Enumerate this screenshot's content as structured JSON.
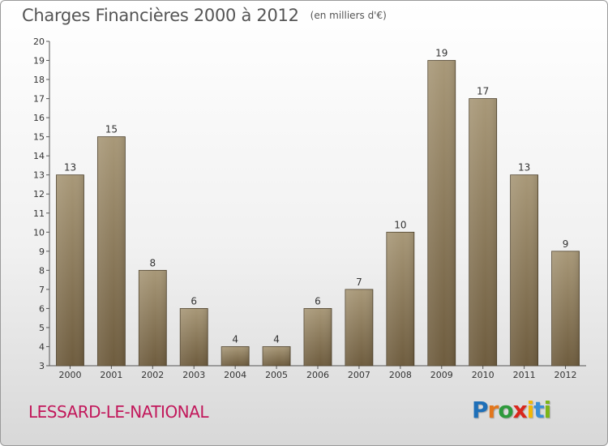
{
  "header": {
    "title": "Charges Financières 2000 à 2012",
    "subtitle": "(en milliers d'€)"
  },
  "footer": {
    "commune": "LESSARD-LE-NATIONAL",
    "logo_letters": [
      "P",
      "r",
      "o",
      "x",
      "i",
      "t",
      "i"
    ],
    "logo_colors": [
      "#1e6fb8",
      "#e2761c",
      "#2e9a3c",
      "#d9261c",
      "#f2b705",
      "#3a8fd6",
      "#7cb518"
    ]
  },
  "colors": {
    "bar_top": "#a89878",
    "bar_bottom": "#6e5c3e"
  },
  "chart_data": {
    "type": "bar",
    "title": "Charges Financières 2000 à 2012",
    "subtitle": "(en milliers d'€)",
    "categories": [
      "2000",
      "2001",
      "2002",
      "2003",
      "2004",
      "2005",
      "2006",
      "2007",
      "2008",
      "2009",
      "2010",
      "2011",
      "2012"
    ],
    "values": [
      13,
      15,
      8,
      6,
      4,
      4,
      6,
      7,
      10,
      19,
      17,
      13,
      9
    ],
    "ylim": [
      3,
      20
    ],
    "yticks": [
      3,
      4,
      5,
      6,
      7,
      8,
      9,
      10,
      11,
      12,
      13,
      14,
      15,
      16,
      17,
      18,
      19,
      20
    ],
    "grid": false
  }
}
